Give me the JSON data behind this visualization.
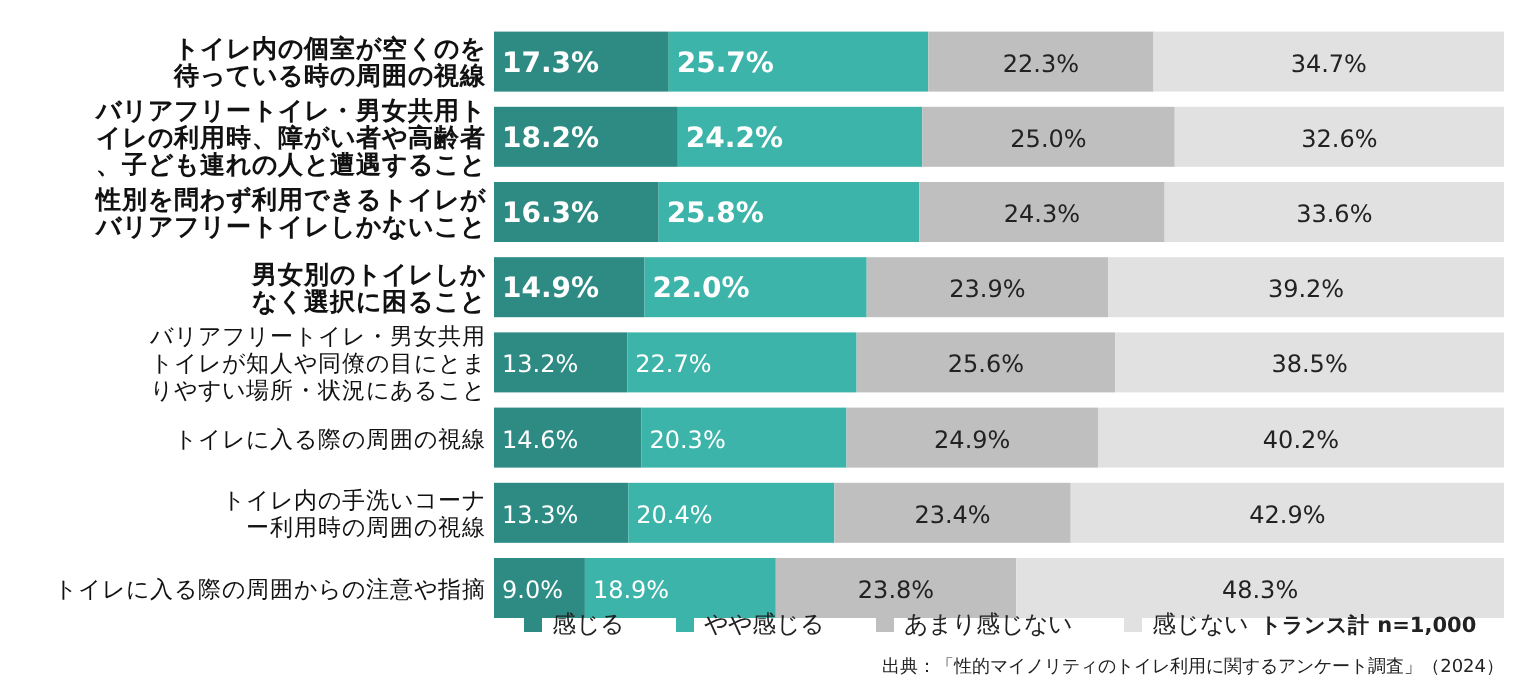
{
  "chart_data": {
    "type": "bar",
    "orientation": "horizontal",
    "stacked": true,
    "data_labels": true,
    "legend": "bottom",
    "categories": [
      "トイレ内の個室が空くのを待っている時の周囲の視線",
      "バリアフリートイレ・男女共用トイレの利用時、障がい者や高齢者、子ども連れの人と遭遇すること",
      "性別を問わず利用できるトイレがバリアフリートイレしかないこと",
      "男女別のトイレしかなく選択に困ること",
      "バリアフリートイレ・男女共用トイレが知人や同僚の目にとまりやすい場所・状況にあること",
      "トイレに入る際の周囲の視線",
      "トイレ内の手洗いコーナー利用時の周囲の視線",
      "トイレに入る際の周囲からの注意や指摘"
    ],
    "series": [
      {
        "name": "感じる",
        "color": "#2e8b84",
        "values": [
          17.3,
          18.2,
          16.3,
          14.9,
          13.2,
          14.6,
          13.3,
          9.0
        ],
        "value_labels": [
          "17.3%",
          "18.2%",
          "16.3%",
          "14.9%",
          "13.2%",
          "14.6%",
          "13.3%",
          "9.0%"
        ]
      },
      {
        "name": "やや感じる",
        "color": "#3cb4aa",
        "values": [
          25.7,
          24.2,
          25.8,
          22.0,
          22.7,
          20.3,
          20.4,
          18.9
        ],
        "value_labels": [
          "25.7%",
          "24.2%",
          "25.8%",
          "22.0%",
          "22.7%",
          "20.3%",
          "20.4%",
          "18.9%"
        ]
      },
      {
        "name": "あまり感じない",
        "color": "#bfbfbf",
        "values": [
          22.3,
          25.0,
          24.3,
          23.9,
          25.6,
          24.9,
          23.4,
          23.8
        ],
        "value_labels": [
          "22.3%",
          "25.0%",
          "24.3%",
          "23.9%",
          "25.6%",
          "24.9%",
          "23.4%",
          "23.8%"
        ]
      },
      {
        "name": "感じない",
        "color": "#e1e1e1",
        "values": [
          34.7,
          32.6,
          33.6,
          39.2,
          38.5,
          40.2,
          42.9,
          48.3
        ],
        "value_labels": [
          "34.7%",
          "32.6%",
          "33.6%",
          "39.2%",
          "38.5%",
          "40.2%",
          "42.9%",
          "48.3%"
        ]
      }
    ],
    "annotations": [
      "トランス計 n=1,000",
      "出典：「性的マイノリティのトイレ利用に関するアンケート調査」（2024）"
    ]
  }
}
